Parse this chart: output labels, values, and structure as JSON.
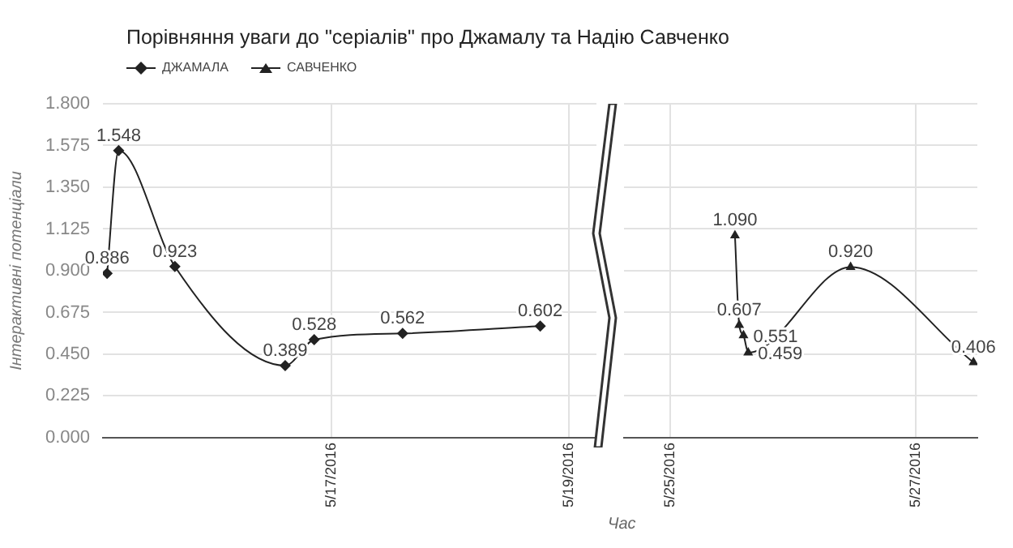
{
  "chart_data": [
    {
      "type": "line",
      "title": "Порівняння уваги до \"серіалів\" про Джамалу та Надію Савченко",
      "xlabel": "Час",
      "ylabel": "Інтерактивні потенціали",
      "xlim": [
        "2016-05-15T02:00",
        "2016-05-19T05:30"
      ],
      "xticks": [
        {
          "value": "2016-05-17",
          "label": "5/17/2016"
        },
        {
          "value": "2016-05-19",
          "label": "5/19/2016"
        }
      ],
      "ylim": [
        0,
        1.8
      ],
      "yticks": [
        {
          "value": 0,
          "label": "0.000"
        },
        {
          "value": 0.225,
          "label": "0.225"
        },
        {
          "value": 0.45,
          "label": "0.450"
        },
        {
          "value": 0.675,
          "label": "0.675"
        },
        {
          "value": 0.9,
          "label": "0.900"
        },
        {
          "value": 1.125,
          "label": "1.125"
        },
        {
          "value": 1.35,
          "label": "1.350"
        },
        {
          "value": 1.575,
          "label": "1.575"
        },
        {
          "value": 1.8,
          "label": "1.800"
        }
      ],
      "series": [
        {
          "name": "ДЖАМАЛА",
          "color": "#222222",
          "marker": "diamond",
          "x": [
            "2016-05-15T02:50",
            "2016-05-15T05:10",
            "2016-05-15T16:30",
            "2016-05-16T14:45",
            "2016-05-16T20:35",
            "2016-05-17T14:25",
            "2016-05-18T18:10"
          ],
          "values": [
            0.886,
            1.548,
            0.923,
            0.389,
            0.528,
            0.562,
            0.602
          ],
          "value_labels": [
            "0.886",
            "1.548",
            "0.923",
            "0.389",
            "0.528",
            "0.562",
            "0.602"
          ]
        }
      ],
      "grid": true,
      "legend": "top left"
    },
    {
      "type": "line",
      "xlim": [
        "2016-05-24T15:00",
        "2016-05-27T12:00"
      ],
      "xticks": [
        {
          "value": "2016-05-25",
          "label": "5/25/2016"
        },
        {
          "value": "2016-05-27",
          "label": "5/27/2016"
        }
      ],
      "ylim": [
        0,
        1.8
      ],
      "yticks": [
        0,
        0.225,
        0.45,
        0.675,
        0.9,
        1.125,
        1.35,
        1.575,
        1.8
      ],
      "series": [
        {
          "name": "САВЧЕНКО",
          "color": "#222222",
          "marker": "triangle",
          "x": [
            "2016-05-25T12:40",
            "2016-05-25T13:30",
            "2016-05-25T14:20",
            "2016-05-25T15:15",
            "2016-05-26T11:15",
            "2016-05-27T11:15"
          ],
          "values": [
            1.09,
            0.607,
            0.551,
            0.459,
            0.92,
            0.406
          ],
          "value_labels": [
            "1.090",
            "0.607",
            "0.551",
            "0.459",
            "0.920",
            "0.406"
          ]
        }
      ],
      "grid": true,
      "legend": "top left",
      "tick_labels": "x"
    }
  ]
}
